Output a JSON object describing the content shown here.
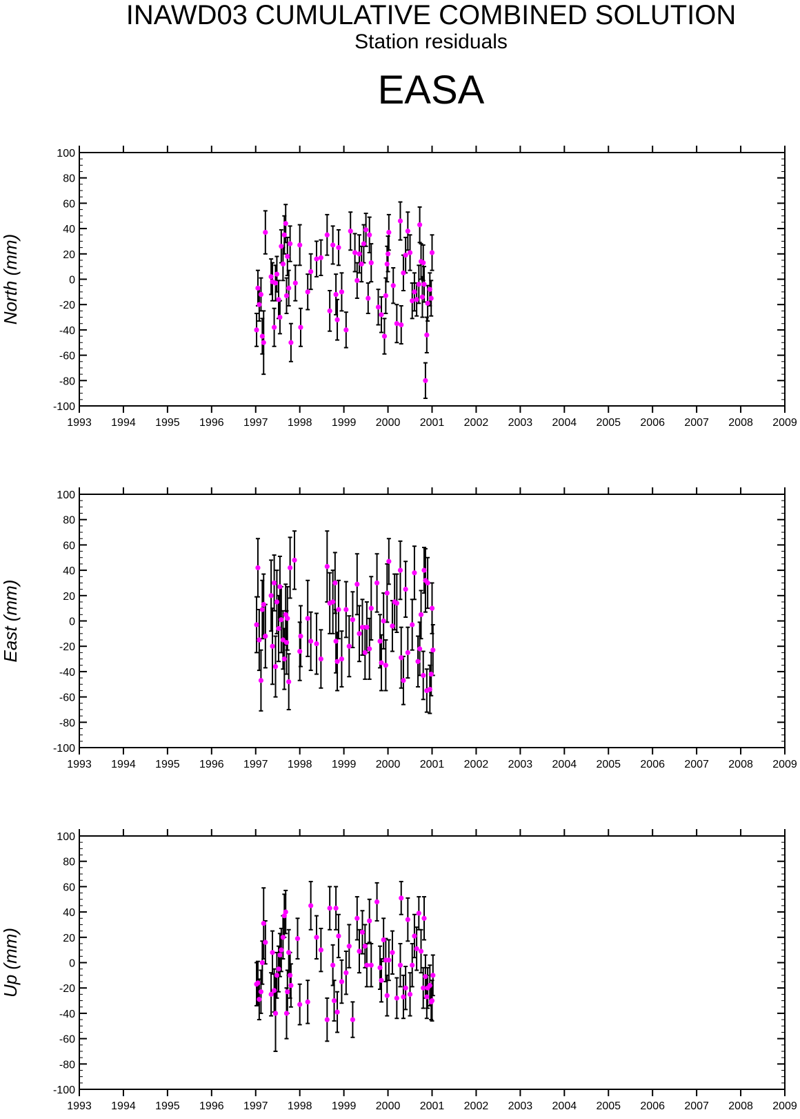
{
  "header": {
    "title": "INAWD03 CUMULATIVE COMBINED SOLUTION",
    "subtitle": "Station residuals",
    "station": "EASA"
  },
  "colors": {
    "marker": "#ff00ff",
    "errorbar": "#000000",
    "frame": "#000000"
  },
  "chart_data": [
    {
      "type": "scatter",
      "name": "north-panel",
      "ylabel": "North (mm)",
      "xlim": [
        1993,
        2009
      ],
      "ylim": [
        -100,
        100
      ],
      "x_ticks": [
        "1993",
        "1994",
        "1995",
        "1996",
        "1997",
        "1998",
        "1999",
        "2000",
        "2001",
        "2002",
        "2003",
        "2004",
        "2005",
        "2006",
        "2007",
        "2008",
        "2009"
      ],
      "y_ticks": [
        "100",
        "80",
        "60",
        "40",
        "20",
        "0",
        "-20",
        "-40",
        "-60",
        "-80",
        "-100"
      ],
      "points": [
        [
          1997.02,
          -40,
          13
        ],
        [
          1997.05,
          -7,
          14
        ],
        [
          1997.08,
          -20,
          13
        ],
        [
          1997.12,
          -12,
          13
        ],
        [
          1997.15,
          -45,
          14
        ],
        [
          1997.18,
          -50,
          25
        ],
        [
          1997.22,
          37,
          17
        ],
        [
          1997.35,
          2,
          14
        ],
        [
          1997.38,
          -2,
          15
        ],
        [
          1997.42,
          -38,
          15
        ],
        [
          1997.45,
          -3,
          14
        ],
        [
          1997.48,
          4,
          14
        ],
        [
          1997.52,
          -16,
          15
        ],
        [
          1997.55,
          -30,
          13
        ],
        [
          1997.58,
          26,
          13
        ],
        [
          1997.62,
          12,
          13
        ],
        [
          1997.65,
          35,
          15
        ],
        [
          1997.68,
          44,
          15
        ],
        [
          1997.7,
          -13,
          14
        ],
        [
          1997.72,
          18,
          15
        ],
        [
          1997.75,
          -7,
          14
        ],
        [
          1997.78,
          28,
          14
        ],
        [
          1997.8,
          -50,
          15
        ],
        [
          1997.9,
          -3,
          14
        ],
        [
          1998.0,
          27,
          16
        ],
        [
          1998.02,
          -38,
          15
        ],
        [
          1998.18,
          -10,
          14
        ],
        [
          1998.25,
          6,
          14
        ],
        [
          1998.38,
          16,
          14
        ],
        [
          1998.48,
          17,
          14
        ],
        [
          1998.62,
          35,
          16
        ],
        [
          1998.68,
          -25,
          16
        ],
        [
          1998.75,
          27,
          15
        ],
        [
          1998.82,
          -12,
          16
        ],
        [
          1998.85,
          -32,
          16
        ],
        [
          1998.88,
          25,
          14
        ],
        [
          1998.95,
          -10,
          15
        ],
        [
          1999.05,
          -40,
          14
        ],
        [
          1999.15,
          38,
          15
        ],
        [
          1999.25,
          21,
          15
        ],
        [
          1999.3,
          -1,
          14
        ],
        [
          1999.35,
          20,
          15
        ],
        [
          1999.4,
          12,
          14
        ],
        [
          1999.45,
          28,
          15
        ],
        [
          1999.5,
          39,
          13
        ],
        [
          1999.55,
          -15,
          12
        ],
        [
          1999.58,
          35,
          14
        ],
        [
          1999.62,
          13,
          15
        ],
        [
          1999.78,
          -22,
          14
        ],
        [
          1999.85,
          -28,
          14
        ],
        [
          1999.92,
          -45,
          14
        ],
        [
          1999.95,
          -13,
          14
        ],
        [
          1999.98,
          12,
          14
        ],
        [
          2000.0,
          20,
          14
        ],
        [
          2000.02,
          37,
          14
        ],
        [
          2000.12,
          -5,
          14
        ],
        [
          2000.2,
          -35,
          15
        ],
        [
          2000.28,
          46,
          15
        ],
        [
          2000.3,
          -36,
          15
        ],
        [
          2000.35,
          5,
          14
        ],
        [
          2000.4,
          19,
          14
        ],
        [
          2000.45,
          38,
          15
        ],
        [
          2000.5,
          21,
          14
        ],
        [
          2000.55,
          -17,
          14
        ],
        [
          2000.6,
          -10,
          15
        ],
        [
          2000.65,
          -16,
          13
        ],
        [
          2000.7,
          -4,
          15
        ],
        [
          2000.72,
          43,
          14
        ],
        [
          2000.75,
          14,
          14
        ],
        [
          2000.78,
          -14,
          16
        ],
        [
          2000.8,
          13,
          14
        ],
        [
          2000.82,
          -4,
          14
        ],
        [
          2000.85,
          -80,
          14
        ],
        [
          2000.88,
          -44,
          14
        ],
        [
          2000.9,
          -19,
          14
        ],
        [
          2000.95,
          -8,
          13
        ],
        [
          2000.98,
          -15,
          14
        ],
        [
          2001.0,
          21,
          14
        ]
      ]
    },
    {
      "type": "scatter",
      "name": "east-panel",
      "ylabel": "East (mm)",
      "xlim": [
        1993,
        2009
      ],
      "ylim": [
        -100,
        100
      ],
      "x_ticks": [
        "1993",
        "1994",
        "1995",
        "1996",
        "1997",
        "1998",
        "1999",
        "2000",
        "2001",
        "2002",
        "2003",
        "2004",
        "2005",
        "2006",
        "2007",
        "2008",
        "2009"
      ],
      "y_ticks": [
        "100",
        "80",
        "60",
        "40",
        "20",
        "0",
        "-20",
        "-40",
        "-60",
        "-80",
        "-100"
      ],
      "points": [
        [
          1997.02,
          -3,
          22
        ],
        [
          1997.05,
          42,
          23
        ],
        [
          1997.08,
          -15,
          24
        ],
        [
          1997.12,
          -47,
          24
        ],
        [
          1997.15,
          9,
          23
        ],
        [
          1997.18,
          13,
          24
        ],
        [
          1997.22,
          -12,
          25
        ],
        [
          1997.35,
          20,
          28
        ],
        [
          1997.38,
          -20,
          30
        ],
        [
          1997.42,
          30,
          22
        ],
        [
          1997.45,
          -36,
          24
        ],
        [
          1997.48,
          15,
          25
        ],
        [
          1997.52,
          -6,
          26
        ],
        [
          1997.55,
          27,
          24
        ],
        [
          1997.58,
          1,
          26
        ],
        [
          1997.62,
          -15,
          23
        ],
        [
          1997.65,
          -30,
          24
        ],
        [
          1997.68,
          5,
          24
        ],
        [
          1997.7,
          -17,
          25
        ],
        [
          1997.72,
          2,
          25
        ],
        [
          1997.75,
          -48,
          22
        ],
        [
          1997.78,
          42,
          24
        ],
        [
          1997.88,
          48,
          23
        ],
        [
          1998.0,
          -24,
          23
        ],
        [
          1998.02,
          -12,
          24
        ],
        [
          1998.18,
          2,
          30
        ],
        [
          1998.25,
          -16,
          23
        ],
        [
          1998.38,
          -18,
          24
        ],
        [
          1998.48,
          -30,
          23
        ],
        [
          1998.62,
          43,
          28
        ],
        [
          1998.68,
          14,
          24
        ],
        [
          1998.75,
          15,
          25
        ],
        [
          1998.8,
          30,
          24
        ],
        [
          1998.82,
          -16,
          25
        ],
        [
          1998.85,
          -32,
          23
        ],
        [
          1998.88,
          9,
          23
        ],
        [
          1998.95,
          -30,
          22
        ],
        [
          1999.05,
          9,
          22
        ],
        [
          1999.12,
          -20,
          24
        ],
        [
          1999.2,
          1,
          22
        ],
        [
          1999.3,
          29,
          24
        ],
        [
          1999.35,
          -10,
          22
        ],
        [
          1999.42,
          -5,
          22
        ],
        [
          1999.48,
          -25,
          21
        ],
        [
          1999.52,
          -5,
          20
        ],
        [
          1999.58,
          -22,
          24
        ],
        [
          1999.62,
          10,
          25
        ],
        [
          1999.75,
          30,
          23
        ],
        [
          1999.82,
          -16,
          21
        ],
        [
          1999.85,
          -33,
          22
        ],
        [
          1999.9,
          0,
          22
        ],
        [
          1999.95,
          -35,
          20
        ],
        [
          1999.98,
          22,
          23
        ],
        [
          2000.02,
          47,
          18
        ],
        [
          2000.1,
          -4,
          20
        ],
        [
          2000.15,
          15,
          22
        ],
        [
          2000.2,
          14,
          23
        ],
        [
          2000.28,
          40,
          23
        ],
        [
          2000.3,
          -29,
          24
        ],
        [
          2000.35,
          -47,
          19
        ],
        [
          2000.4,
          25,
          22
        ],
        [
          2000.45,
          -25,
          20
        ],
        [
          2000.55,
          -3,
          20
        ],
        [
          2000.6,
          38,
          21
        ],
        [
          2000.68,
          -32,
          20
        ],
        [
          2000.72,
          -22,
          21
        ],
        [
          2000.75,
          5,
          19
        ],
        [
          2000.8,
          -43,
          19
        ],
        [
          2000.82,
          40,
          18
        ],
        [
          2000.85,
          32,
          25
        ],
        [
          2000.88,
          -55,
          17
        ],
        [
          2000.9,
          30,
          20
        ],
        [
          2000.95,
          -54,
          19
        ],
        [
          2000.98,
          -42,
          17
        ],
        [
          2001.0,
          10,
          20
        ],
        [
          2001.02,
          -23,
          20
        ]
      ]
    },
    {
      "type": "scatter",
      "name": "up-panel",
      "ylabel": "Up (mm)",
      "xlim": [
        1993,
        2009
      ],
      "ylim": [
        -100,
        100
      ],
      "x_ticks": [
        "1993",
        "1994",
        "1995",
        "1996",
        "1997",
        "1998",
        "1999",
        "2000",
        "2001",
        "2002",
        "2003",
        "2004",
        "2005",
        "2006",
        "2007",
        "2008",
        "2009"
      ],
      "y_ticks": [
        "100",
        "80",
        "60",
        "40",
        "20",
        "0",
        "-20",
        "-40",
        "-60",
        "-80",
        "-100"
      ],
      "points": [
        [
          1997.02,
          -17,
          17
        ],
        [
          1997.05,
          -16,
          17
        ],
        [
          1997.08,
          -29,
          16
        ],
        [
          1997.12,
          -23,
          17
        ],
        [
          1997.15,
          0,
          17
        ],
        [
          1997.18,
          31,
          28
        ],
        [
          1997.22,
          16,
          17
        ],
        [
          1997.35,
          -25,
          17
        ],
        [
          1997.38,
          8,
          17
        ],
        [
          1997.42,
          -22,
          17
        ],
        [
          1997.45,
          -40,
          30
        ],
        [
          1997.48,
          -10,
          18
        ],
        [
          1997.52,
          -5,
          18
        ],
        [
          1997.55,
          6,
          17
        ],
        [
          1997.58,
          10,
          17
        ],
        [
          1997.62,
          20,
          17
        ],
        [
          1997.65,
          37,
          17
        ],
        [
          1997.68,
          40,
          17
        ],
        [
          1997.7,
          -40,
          20
        ],
        [
          1997.72,
          -23,
          17
        ],
        [
          1997.75,
          8,
          18
        ],
        [
          1997.78,
          -10,
          18
        ],
        [
          1997.8,
          -18,
          17
        ],
        [
          1997.95,
          19,
          16
        ],
        [
          1998.0,
          -33,
          16
        ],
        [
          1998.18,
          -31,
          17
        ],
        [
          1998.25,
          45,
          19
        ],
        [
          1998.38,
          20,
          17
        ],
        [
          1998.48,
          10,
          17
        ],
        [
          1998.62,
          -45,
          17
        ],
        [
          1998.68,
          43,
          17
        ],
        [
          1998.75,
          -2,
          16
        ],
        [
          1998.78,
          -30,
          16
        ],
        [
          1998.82,
          43,
          17
        ],
        [
          1998.85,
          -39,
          16
        ],
        [
          1998.88,
          21,
          17
        ],
        [
          1998.95,
          -15,
          17
        ],
        [
          1999.05,
          -8,
          17
        ],
        [
          1999.12,
          13,
          17
        ],
        [
          1999.2,
          -45,
          14
        ],
        [
          1999.3,
          35,
          17
        ],
        [
          1999.35,
          9,
          17
        ],
        [
          1999.42,
          24,
          17
        ],
        [
          1999.48,
          13,
          17
        ],
        [
          1999.52,
          -2,
          17
        ],
        [
          1999.58,
          33,
          17
        ],
        [
          1999.62,
          -2,
          17
        ],
        [
          1999.75,
          48,
          15
        ],
        [
          1999.82,
          -4,
          17
        ],
        [
          1999.85,
          -14,
          17
        ],
        [
          1999.9,
          18,
          17
        ],
        [
          1999.95,
          2,
          17
        ],
        [
          1999.98,
          -26,
          16
        ],
        [
          2000.02,
          2,
          16
        ],
        [
          2000.1,
          8,
          17
        ],
        [
          2000.2,
          -28,
          16
        ],
        [
          2000.28,
          -2,
          17
        ],
        [
          2000.3,
          51,
          13
        ],
        [
          2000.35,
          -27,
          17
        ],
        [
          2000.4,
          -20,
          17
        ],
        [
          2000.45,
          34,
          17
        ],
        [
          2000.5,
          -25,
          17
        ],
        [
          2000.55,
          -2,
          17
        ],
        [
          2000.6,
          21,
          17
        ],
        [
          2000.65,
          11,
          17
        ],
        [
          2000.7,
          39,
          13
        ],
        [
          2000.75,
          9,
          17
        ],
        [
          2000.8,
          -20,
          16
        ],
        [
          2000.82,
          35,
          17
        ],
        [
          2000.85,
          -11,
          17
        ],
        [
          2000.88,
          -27,
          17
        ],
        [
          2000.9,
          -20,
          16
        ],
        [
          2000.95,
          -18,
          16
        ],
        [
          2000.98,
          -31,
          14
        ],
        [
          2001.0,
          -30,
          16
        ],
        [
          2001.02,
          -10,
          16
        ]
      ]
    }
  ]
}
